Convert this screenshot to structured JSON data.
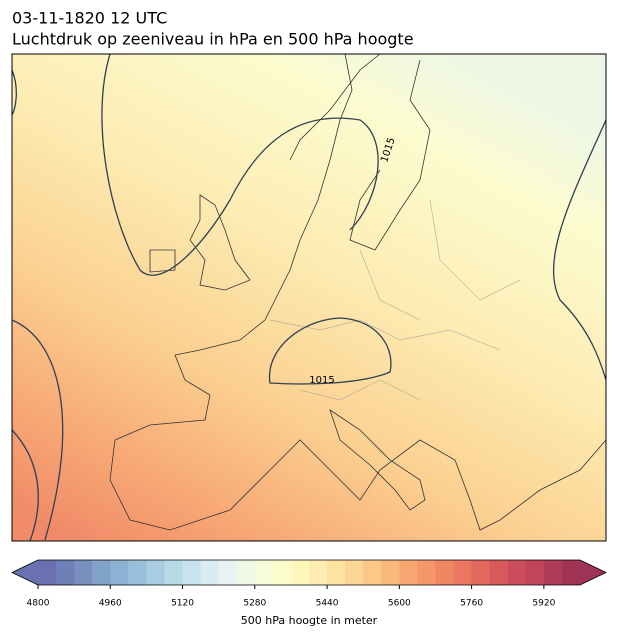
{
  "header": {
    "title": "03-11-1820 12 UTC",
    "subtitle": "Luchtdruk op zeeniveau in hPa en 500 hPa hoogte"
  },
  "map": {
    "contour_labels": [
      "1015",
      "1015"
    ]
  },
  "colorbar": {
    "label": "500 hPa hoogte in meter",
    "clim": [
      4800,
      6000
    ],
    "ticks": [
      4800,
      4960,
      5120,
      5280,
      5440,
      5600,
      5760,
      5920
    ],
    "colors": [
      "#6a70b0",
      "#6f7fb8",
      "#7790c0",
      "#80a2c8",
      "#8bb2d2",
      "#98c0da",
      "#a8cde2",
      "#b8d9e8",
      "#c8e3ee",
      "#d8ecf2",
      "#e6f3f0",
      "#f0f8e6",
      "#f7fbd8",
      "#fcfcca",
      "#fff6bc",
      "#feecb0",
      "#fde2a2",
      "#fcd696",
      "#fbc888",
      "#f9b97c",
      "#f7a872",
      "#f4986a",
      "#f08764",
      "#ea775f",
      "#e2675c",
      "#d85a5a",
      "#cc4e5a",
      "#c0455a",
      "#b03c58",
      "#a03456"
    ]
  }
}
